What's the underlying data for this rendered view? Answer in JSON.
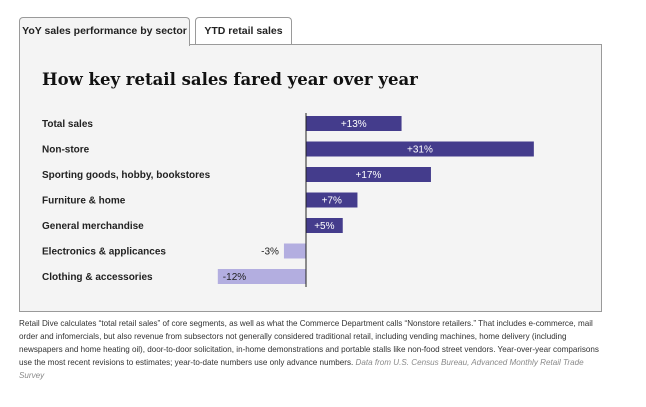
{
  "tabs": [
    {
      "label": "YoY sales performance by sector",
      "active": true
    },
    {
      "label": "YTD retail sales",
      "active": false
    }
  ],
  "colors": {
    "positive": "#443c8c",
    "negative": "#b3aee0",
    "panel": "#f4f4f4"
  },
  "chart_data": {
    "type": "bar",
    "orientation": "horizontal",
    "title": "How key retail sales fared year over year",
    "categories": [
      "Total sales",
      "Non-store",
      "Sporting goods, hobby, bookstores",
      "Furniture & home",
      "General merchandise",
      "Electronics & applicances",
      "Clothing & accessories"
    ],
    "values": [
      13,
      31,
      17,
      7,
      5,
      -3,
      -12
    ],
    "labels": [
      "+13%",
      "+31%",
      "+17%",
      "+7%",
      "+5%",
      "-3%",
      "-12%"
    ],
    "unit": "%",
    "xlim": [
      -12,
      31
    ],
    "grid": false,
    "legend": "none"
  },
  "caption": {
    "text": "Retail Dive calculates “total retail sales” of core segments, as well as what the Commerce Department calls “Nonstore retailers.” That includes e-commerce, mail order and infomercials, but also revenue from subsectors not generally considered traditional retail, including vending machines, home delivery (including newspapers and home heating oil), door-to-door solicitation, in-home demonstrations and portable stalls like non-food street vendors. Year-over-year comparisons use the most recent revisions to estimates; year-to-date numbers use only advance numbers.",
    "source": "Data from U.S. Census Bureau, Advanced Monthly Retail Trade Survey"
  }
}
